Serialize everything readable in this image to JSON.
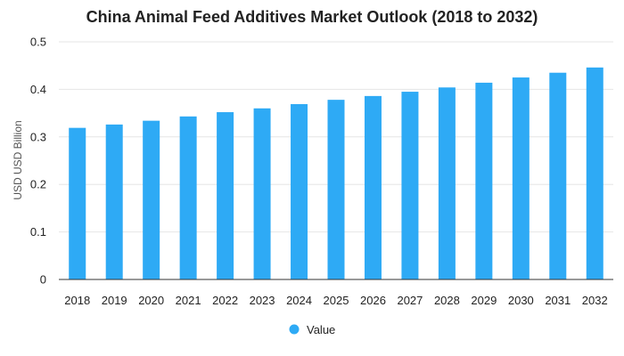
{
  "chart_data": {
    "type": "bar",
    "title": "China Animal Feed Additives Market Outlook (2018 to 2032)",
    "xlabel": "",
    "ylabel": "USD USD Billion",
    "ylim": [
      0,
      0.5
    ],
    "yticks": [
      0,
      0.1,
      0.2,
      0.3,
      0.4,
      0.5
    ],
    "ytick_labels": [
      "0",
      "0.1",
      "0.2",
      "0.3",
      "0.4",
      "0.5"
    ],
    "categories": [
      "2018",
      "2019",
      "2020",
      "2021",
      "2022",
      "2023",
      "2024",
      "2025",
      "2026",
      "2027",
      "2028",
      "2029",
      "2030",
      "2031",
      "2032"
    ],
    "series": [
      {
        "name": "Value",
        "values": [
          0.319,
          0.326,
          0.334,
          0.343,
          0.352,
          0.36,
          0.369,
          0.378,
          0.386,
          0.395,
          0.404,
          0.414,
          0.425,
          0.435,
          0.446
        ],
        "color": "#2eaaf5"
      }
    ],
    "grid": true,
    "legend_position": "bottom-center"
  }
}
